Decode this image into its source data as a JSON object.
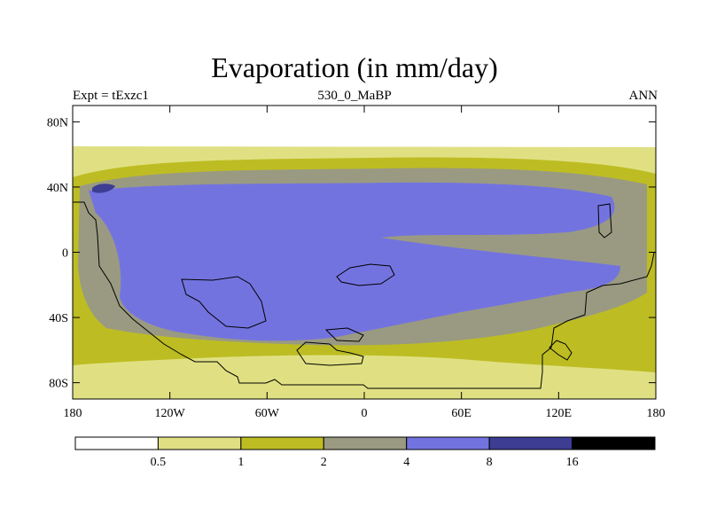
{
  "title": "Evaporation (in mm/day)",
  "subtitle_left": "Expt = tExzc1",
  "subtitle_center": "530_0_MaBP",
  "subtitle_right": "ANN",
  "chart_data": {
    "type": "heatmap",
    "variable": "Evaporation",
    "units": "mm/day",
    "x_range": [
      -180,
      180
    ],
    "y_range": [
      -90,
      90
    ],
    "x_ticks": [
      {
        "value": -180,
        "label": "180"
      },
      {
        "value": -120,
        "label": "120W"
      },
      {
        "value": -60,
        "label": "60W"
      },
      {
        "value": 0,
        "label": "0"
      },
      {
        "value": 60,
        "label": "60E"
      },
      {
        "value": 120,
        "label": "120E"
      },
      {
        "value": 180,
        "label": "180"
      }
    ],
    "y_ticks": [
      {
        "value": 80,
        "label": "80N"
      },
      {
        "value": 40,
        "label": "40N"
      },
      {
        "value": 0,
        "label": "0"
      },
      {
        "value": -40,
        "label": "40S"
      },
      {
        "value": -80,
        "label": "80S"
      }
    ],
    "levels": [
      0.5,
      1,
      2,
      4,
      8,
      16
    ],
    "level_labels": [
      "0.5",
      "1",
      "2",
      "4",
      "8",
      "16"
    ],
    "colors": [
      "#ffffff",
      "#e0e083",
      "#bdbd23",
      "#9a9a82",
      "#7373e0",
      "#3d3d94",
      "#000000"
    ]
  }
}
